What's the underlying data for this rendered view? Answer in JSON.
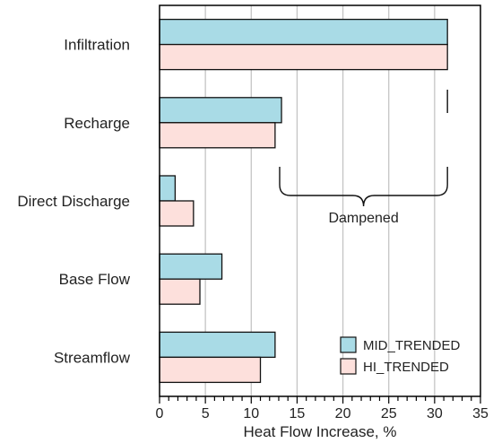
{
  "chart_data": {
    "type": "bar",
    "orientation": "horizontal",
    "categories": [
      "Infiltration",
      "Recharge",
      "Direct Discharge",
      "Base Flow",
      "Streamflow"
    ],
    "series": [
      {
        "name": "MID_TRENDED",
        "color": "#a9dbe6",
        "values": [
          31.4,
          13.3,
          1.7,
          6.8,
          12.6
        ]
      },
      {
        "name": "HI_TRENDED",
        "color": "#fde0dc",
        "values": [
          31.4,
          12.6,
          3.7,
          4.4,
          11.0
        ]
      }
    ],
    "xlabel": "Heat Flow Increase, %",
    "xlim": [
      0,
      35
    ],
    "xticks": [
      0,
      5,
      10,
      15,
      20,
      25,
      30,
      35
    ],
    "grid": "vertical",
    "legend": "bottom-right",
    "annotation": {
      "text": "Dampened",
      "range": [
        13.1,
        31.4
      ]
    }
  }
}
